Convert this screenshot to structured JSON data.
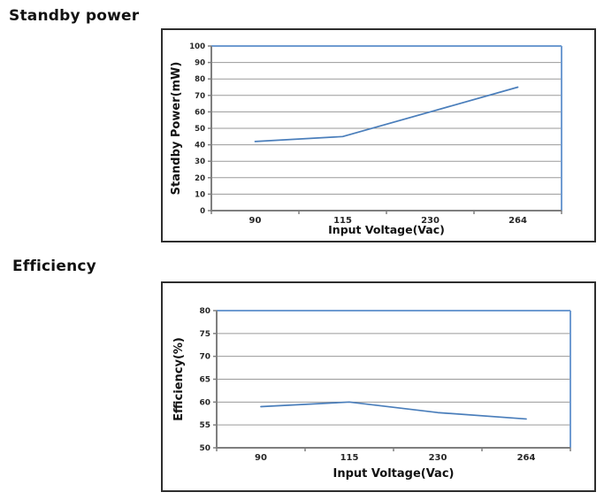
{
  "headings": {
    "standby_power": "Standby power",
    "efficiency": "Efficiency"
  },
  "colors": {
    "series_line": "#4a7ebb",
    "plot_border_blue": "#6f9bd1",
    "gridline": "#9a9a9a",
    "axis_line": "#7f7f7f",
    "outer_border": "#2e2e2e",
    "tick_text": "#262626",
    "axis_title_text": "#111111"
  },
  "chart_data": [
    {
      "type": "line",
      "title": "Standby power",
      "categories": [
        "90",
        "115",
        "230",
        "264"
      ],
      "series": [
        {
          "name": "Standby Power",
          "values": [
            42,
            45,
            60,
            75
          ]
        }
      ],
      "xlabel": "Input Voltage(Vac)",
      "ylabel": "Standby Power(mW)",
      "ylim": [
        0,
        100
      ],
      "ytick_step": 10,
      "yticks": [
        0,
        10,
        20,
        30,
        40,
        50,
        60,
        70,
        80,
        90,
        100
      ],
      "grid": true,
      "legend": false
    },
    {
      "type": "line",
      "title": "Efficiency",
      "categories": [
        "90",
        "115",
        "230",
        "264"
      ],
      "series": [
        {
          "name": "Efficiency",
          "values": [
            59,
            60,
            57.7,
            56.3
          ]
        }
      ],
      "xlabel": "Input Voltage(Vac)",
      "ylabel": "Efficiency(%)",
      "ylim": [
        50,
        80
      ],
      "ytick_step": 5,
      "yticks": [
        50,
        55,
        60,
        65,
        70,
        75,
        80
      ],
      "grid": true,
      "legend": false
    }
  ]
}
